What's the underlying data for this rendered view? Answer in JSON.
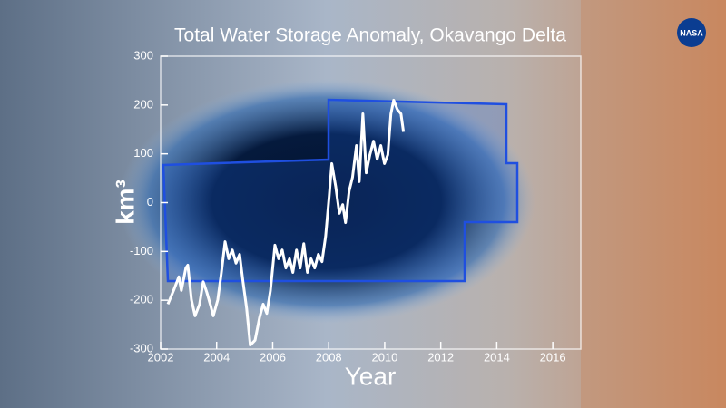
{
  "chart_data": {
    "type": "line",
    "title": "Total Water Storage Anomaly, Okavango Delta",
    "x_label": "Year",
    "y_label": "km³",
    "logo": "NASA",
    "xlim": [
      2002,
      2017
    ],
    "xticks": [
      2002,
      2004,
      2006,
      2008,
      2010,
      2012,
      2014,
      2016
    ],
    "ylim": [
      -300,
      300
    ],
    "yticks": [
      -300,
      -200,
      -100,
      0,
      100,
      200,
      300
    ],
    "series": [
      {
        "color": "#ffffff",
        "x": [
          2002.26,
          2002.49,
          2002.65,
          2002.74,
          2002.9,
          2002.97,
          2003.1,
          2003.23,
          2003.39,
          2003.52,
          2003.65,
          2003.78,
          2003.88,
          2004.04,
          2004.17,
          2004.3,
          2004.43,
          2004.56,
          2004.69,
          2004.82,
          2004.94,
          2005.07,
          2005.2,
          2005.37,
          2005.53,
          2005.66,
          2005.79,
          2005.92,
          2006.08,
          2006.21,
          2006.34,
          2006.47,
          2006.6,
          2006.72,
          2006.85,
          2006.98,
          2007.11,
          2007.24,
          2007.37,
          2007.5,
          2007.63,
          2007.76,
          2007.89,
          2008.02,
          2008.11,
          2008.25,
          2008.38,
          2008.5,
          2008.6,
          2008.73,
          2008.85,
          2008.99,
          2009.09,
          2009.22,
          2009.34,
          2009.47,
          2009.6,
          2009.73,
          2009.86,
          2009.99,
          2010.11,
          2010.22,
          2010.32,
          2010.45,
          2010.58,
          2010.67
        ],
        "values": [
          -208,
          -176,
          -152,
          -180,
          -134,
          -128,
          -199,
          -232,
          -208,
          -162,
          -184,
          -210,
          -232,
          -199,
          -143,
          -80,
          -115,
          -97,
          -124,
          -106,
          -162,
          -217,
          -292,
          -282,
          -236,
          -208,
          -227,
          -180,
          -87,
          -115,
          -97,
          -134,
          -115,
          -143,
          -97,
          -134,
          -84,
          -143,
          -115,
          -134,
          -106,
          -121,
          -69,
          15,
          80,
          33,
          -22,
          -4,
          -41,
          24,
          52,
          117,
          43,
          182,
          61,
          98,
          126,
          89,
          117,
          80,
          98,
          182,
          210,
          191,
          182,
          145
        ]
      }
    ]
  }
}
